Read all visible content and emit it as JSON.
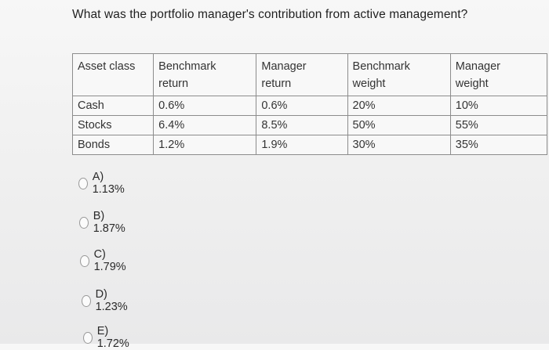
{
  "question": "What was the portfolio manager's contribution from active management?",
  "table": {
    "headers": {
      "asset_class": "Asset class",
      "benchmark_return_line1": "Benchmark",
      "benchmark_return_line2": "return",
      "manager_return_line1": "Manager",
      "manager_return_line2": "return",
      "benchmark_weight_line1": "Benchmark",
      "benchmark_weight_line2": "weight",
      "manager_weight_line1": "Manager",
      "manager_weight_line2": "weight"
    },
    "rows": [
      {
        "asset": "Cash",
        "benchmark_return": "0.6%",
        "manager_return": "0.6%",
        "benchmark_weight": "20%",
        "manager_weight": "10%"
      },
      {
        "asset": "Stocks",
        "benchmark_return": "6.4%",
        "manager_return": "8.5%",
        "benchmark_weight": "50%",
        "manager_weight": "55%"
      },
      {
        "asset": "Bonds",
        "benchmark_return": "1.2%",
        "manager_return": "1.9%",
        "benchmark_weight": "30%",
        "manager_weight": "35%"
      }
    ]
  },
  "options": [
    {
      "label": "A) 1.13%"
    },
    {
      "label": "B) 1.87%"
    },
    {
      "label": "C) 1.79%"
    },
    {
      "label": "D) 1.23%"
    },
    {
      "label": "E) 1.72%"
    }
  ]
}
